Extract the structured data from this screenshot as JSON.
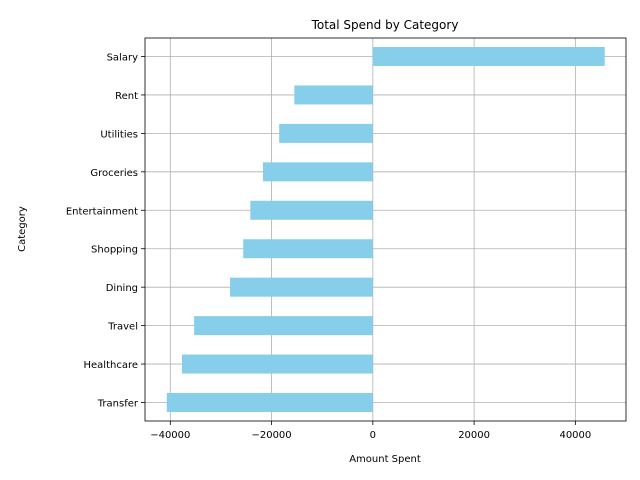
{
  "chart_data": {
    "type": "bar",
    "orientation": "horizontal",
    "title": "Total Spend by Category",
    "xlabel": "Amount Spent",
    "ylabel": "Category",
    "categories": [
      "Salary",
      "Rent",
      "Utilities",
      "Groceries",
      "Entertainment",
      "Shopping",
      "Dining",
      "Travel",
      "Healthcare",
      "Transfer"
    ],
    "values": [
      45800,
      -15500,
      -18500,
      -21700,
      -24200,
      -25600,
      -28200,
      -35300,
      -37700,
      -40700
    ],
    "xlim": [
      -45000,
      50000
    ],
    "xticks": [
      -40000,
      -20000,
      0,
      20000,
      40000
    ],
    "xtick_labels": [
      "−40000",
      "−20000",
      "0",
      "20000",
      "40000"
    ],
    "grid": true,
    "bar_color": "#87ceeb"
  }
}
